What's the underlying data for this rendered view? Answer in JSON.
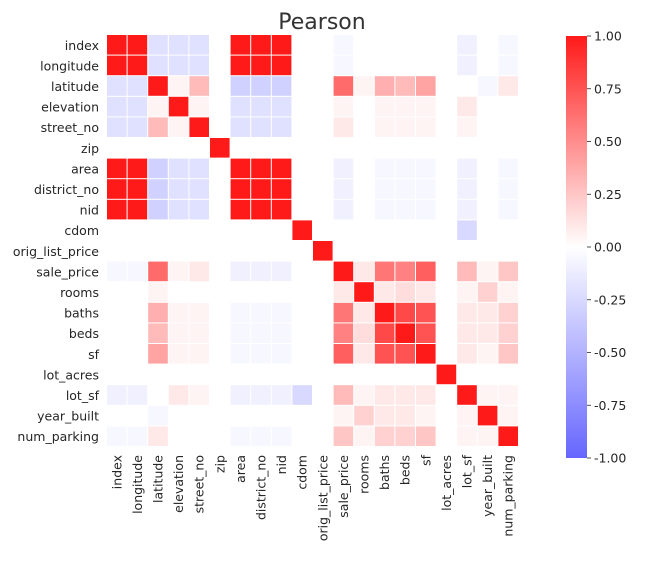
{
  "chart_data": {
    "type": "heatmap",
    "title": "Pearson",
    "variables": [
      "index",
      "longitude",
      "latitude",
      "elevation",
      "street_no",
      "zip",
      "area",
      "district_no",
      "nid",
      "cdom",
      "orig_list_price",
      "sale_price",
      "rooms",
      "baths",
      "beds",
      "sf",
      "lot_acres",
      "lot_sf",
      "year_built",
      "num_parking"
    ],
    "matrix": [
      [
        1.0,
        1.0,
        -0.2,
        -0.2,
        -0.2,
        0.0,
        1.0,
        1.0,
        1.0,
        0.0,
        0.0,
        -0.05,
        0.0,
        0.0,
        0.0,
        0.0,
        0.0,
        -0.1,
        0.0,
        -0.05
      ],
      [
        1.0,
        1.0,
        -0.2,
        -0.2,
        -0.2,
        0.0,
        1.0,
        1.0,
        1.0,
        0.0,
        0.0,
        -0.05,
        0.0,
        0.0,
        0.0,
        0.0,
        0.0,
        -0.1,
        0.0,
        -0.05
      ],
      [
        -0.2,
        -0.2,
        1.0,
        0.05,
        0.3,
        0.0,
        -0.3,
        -0.3,
        -0.3,
        0.0,
        0.0,
        0.65,
        0.05,
        0.35,
        0.3,
        0.4,
        0.0,
        0.0,
        -0.05,
        0.1
      ],
      [
        -0.2,
        -0.2,
        0.05,
        1.0,
        0.05,
        0.0,
        -0.2,
        -0.2,
        -0.2,
        0.0,
        0.0,
        0.05,
        0.0,
        0.05,
        0.05,
        0.05,
        0.0,
        0.1,
        0.0,
        0.0
      ],
      [
        -0.2,
        -0.2,
        0.3,
        0.05,
        1.0,
        0.0,
        -0.2,
        -0.2,
        -0.2,
        0.0,
        0.0,
        0.1,
        0.0,
        0.05,
        0.05,
        0.05,
        0.0,
        0.05,
        0.0,
        0.0
      ],
      [
        0.0,
        0.0,
        0.0,
        0.0,
        0.0,
        1.0,
        0.0,
        0.0,
        0.0,
        0.0,
        0.0,
        0.0,
        0.0,
        0.0,
        0.0,
        0.0,
        0.0,
        0.0,
        0.0,
        0.0
      ],
      [
        1.0,
        1.0,
        -0.3,
        -0.2,
        -0.2,
        0.0,
        1.0,
        1.0,
        1.0,
        0.0,
        0.0,
        -0.1,
        0.0,
        -0.05,
        -0.05,
        -0.05,
        0.0,
        -0.1,
        0.0,
        -0.05
      ],
      [
        1.0,
        1.0,
        -0.3,
        -0.2,
        -0.2,
        0.0,
        1.0,
        1.0,
        1.0,
        0.0,
        0.0,
        -0.1,
        0.0,
        -0.05,
        -0.05,
        -0.05,
        0.0,
        -0.1,
        0.0,
        -0.05
      ],
      [
        1.0,
        1.0,
        -0.3,
        -0.2,
        -0.2,
        0.0,
        1.0,
        1.0,
        1.0,
        0.0,
        0.0,
        -0.1,
        0.0,
        -0.05,
        -0.05,
        -0.05,
        0.0,
        -0.1,
        0.0,
        -0.05
      ],
      [
        0.0,
        0.0,
        0.0,
        0.0,
        0.0,
        0.0,
        0.0,
        0.0,
        0.0,
        1.0,
        0.0,
        0.0,
        0.0,
        0.0,
        0.0,
        0.0,
        0.0,
        -0.25,
        0.0,
        0.0
      ],
      [
        0.0,
        0.0,
        0.0,
        0.0,
        0.0,
        0.0,
        0.0,
        0.0,
        0.0,
        0.0,
        1.0,
        0.0,
        0.0,
        0.0,
        0.0,
        0.0,
        0.0,
        0.0,
        0.0,
        0.0
      ],
      [
        -0.05,
        -0.05,
        0.65,
        0.05,
        0.1,
        0.0,
        -0.1,
        -0.1,
        -0.1,
        0.0,
        0.0,
        1.0,
        0.1,
        0.6,
        0.55,
        0.7,
        0.0,
        0.3,
        0.05,
        0.25
      ],
      [
        0.0,
        0.0,
        0.05,
        0.0,
        0.0,
        0.0,
        0.0,
        0.0,
        0.0,
        0.0,
        0.0,
        0.1,
        1.0,
        0.1,
        0.15,
        0.1,
        0.0,
        0.05,
        0.2,
        0.05
      ],
      [
        0.0,
        0.0,
        0.35,
        0.05,
        0.05,
        0.0,
        -0.05,
        -0.05,
        -0.05,
        0.0,
        0.0,
        0.6,
        0.1,
        1.0,
        0.8,
        0.75,
        0.0,
        0.1,
        0.1,
        0.2
      ],
      [
        0.0,
        0.0,
        0.3,
        0.05,
        0.05,
        0.0,
        -0.05,
        -0.05,
        -0.05,
        0.0,
        0.0,
        0.55,
        0.15,
        0.8,
        1.0,
        0.75,
        0.0,
        0.1,
        0.1,
        0.2
      ],
      [
        0.0,
        0.0,
        0.4,
        0.05,
        0.05,
        0.0,
        -0.05,
        -0.05,
        -0.05,
        0.0,
        0.0,
        0.7,
        0.1,
        0.75,
        0.75,
        1.0,
        0.0,
        0.1,
        0.05,
        0.25
      ],
      [
        0.0,
        0.0,
        0.0,
        0.0,
        0.0,
        0.0,
        0.0,
        0.0,
        0.0,
        0.0,
        0.0,
        0.0,
        0.0,
        0.0,
        0.0,
        0.0,
        1.0,
        0.0,
        0.0,
        0.0
      ],
      [
        -0.1,
        -0.1,
        0.0,
        0.1,
        0.05,
        0.0,
        -0.1,
        -0.1,
        -0.1,
        -0.25,
        0.0,
        0.3,
        0.05,
        0.1,
        0.1,
        0.1,
        0.0,
        1.0,
        0.05,
        0.05
      ],
      [
        0.0,
        0.0,
        -0.05,
        0.0,
        0.0,
        0.0,
        0.0,
        0.0,
        0.0,
        0.0,
        0.0,
        0.05,
        0.2,
        0.1,
        0.1,
        0.05,
        0.0,
        0.05,
        1.0,
        0.05
      ],
      [
        -0.05,
        -0.05,
        0.1,
        0.0,
        0.0,
        0.0,
        -0.05,
        -0.05,
        -0.05,
        0.0,
        0.0,
        0.25,
        0.05,
        0.2,
        0.2,
        0.25,
        0.0,
        0.05,
        0.05,
        1.0
      ]
    ],
    "vmin": -1.0,
    "vmax": 1.0,
    "colorbar_ticks": [
      "1.00",
      "0.75",
      "0.50",
      "0.25",
      "0.00",
      "-0.25",
      "-0.50",
      "-0.75",
      "-1.00"
    ],
    "colorbar_tick_values": [
      1.0,
      0.75,
      0.5,
      0.25,
      0.0,
      -0.25,
      -0.5,
      -0.75,
      -1.0
    ],
    "colorscale": {
      "negative": "#6666ff",
      "center": "#ffffff",
      "positive": "#ff1a1a"
    },
    "cell_divider_color": "#ffffff",
    "grid": false,
    "legend": "right (colorbar)"
  }
}
